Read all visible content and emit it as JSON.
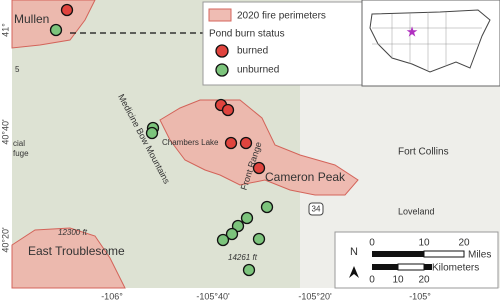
{
  "map": {
    "labels": {
      "mullen": "Mullen",
      "medicine_bow": "Medicine Bow Mountains",
      "chambers_lake": "Chambers Lake",
      "cameron_peak": "Cameron Peak",
      "front_range": "Front Range",
      "fort_collins": "Fort Collins",
      "loveland": "Loveland",
      "east_troublesome": "East Troublesome",
      "elev_1": "12300 ft",
      "elev_2": "14261 ft",
      "highway": "34",
      "route": "5",
      "refuge": "fuge",
      "cial": "cial"
    }
  },
  "axes": {
    "lat": [
      "41°",
      "40°40'",
      "40°20'"
    ],
    "lon": [
      "-106°",
      "-105°40'",
      "-105°20'",
      "-105°"
    ]
  },
  "legend": {
    "fire": "2020 fire perimeters",
    "title": "Pond burn status",
    "burned": "burned",
    "unburned": "unburned"
  },
  "scale_bar": {
    "north": "N",
    "miles": [
      "0",
      "10",
      "20"
    ],
    "miles_unit": "Miles",
    "km": [
      "0",
      "10",
      "20"
    ],
    "km_unit": "Kilometers"
  }
}
